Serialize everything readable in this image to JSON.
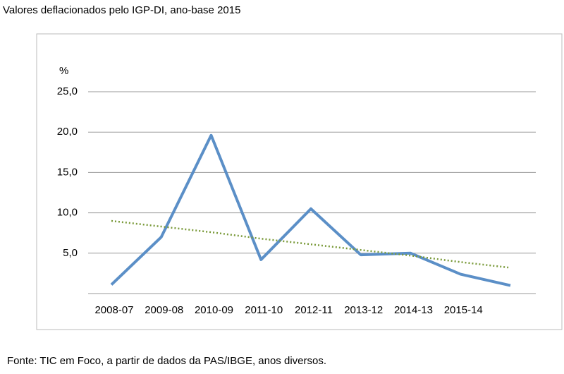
{
  "chart_data": {
    "type": "line",
    "title": "Valores deflacionados pelo IGP-DI, ano-base 2015",
    "y_label": "%",
    "source": "Fonte: TIC em Foco, a partir de dados da PAS/IBGE, anos diversos.",
    "categories": [
      "2008-07",
      "2009-08",
      "2010-09",
      "2011-10",
      "2012-11",
      "2013-12",
      "2014-13",
      "2015-14",
      null
    ],
    "series": [
      {
        "color": "#5b8fc7",
        "style": "solid",
        "values": [
          1.1,
          7.0,
          19.6,
          4.2,
          10.5,
          4.8,
          5.0,
          2.4,
          1.0
        ]
      },
      {
        "color": "#7a9a3a",
        "style": "dotted",
        "values": [
          9.0,
          8.3,
          7.6,
          6.8,
          6.1,
          5.4,
          4.7,
          3.9,
          3.2
        ]
      }
    ],
    "ylim": [
      0,
      25
    ],
    "yticks": [
      {
        "value": 5,
        "label": "5,0"
      },
      {
        "value": 10,
        "label": "10,0"
      },
      {
        "value": 15,
        "label": "15,0"
      },
      {
        "value": 20,
        "label": "20,0"
      },
      {
        "value": 25,
        "label": "25,0"
      }
    ],
    "grid": true
  }
}
